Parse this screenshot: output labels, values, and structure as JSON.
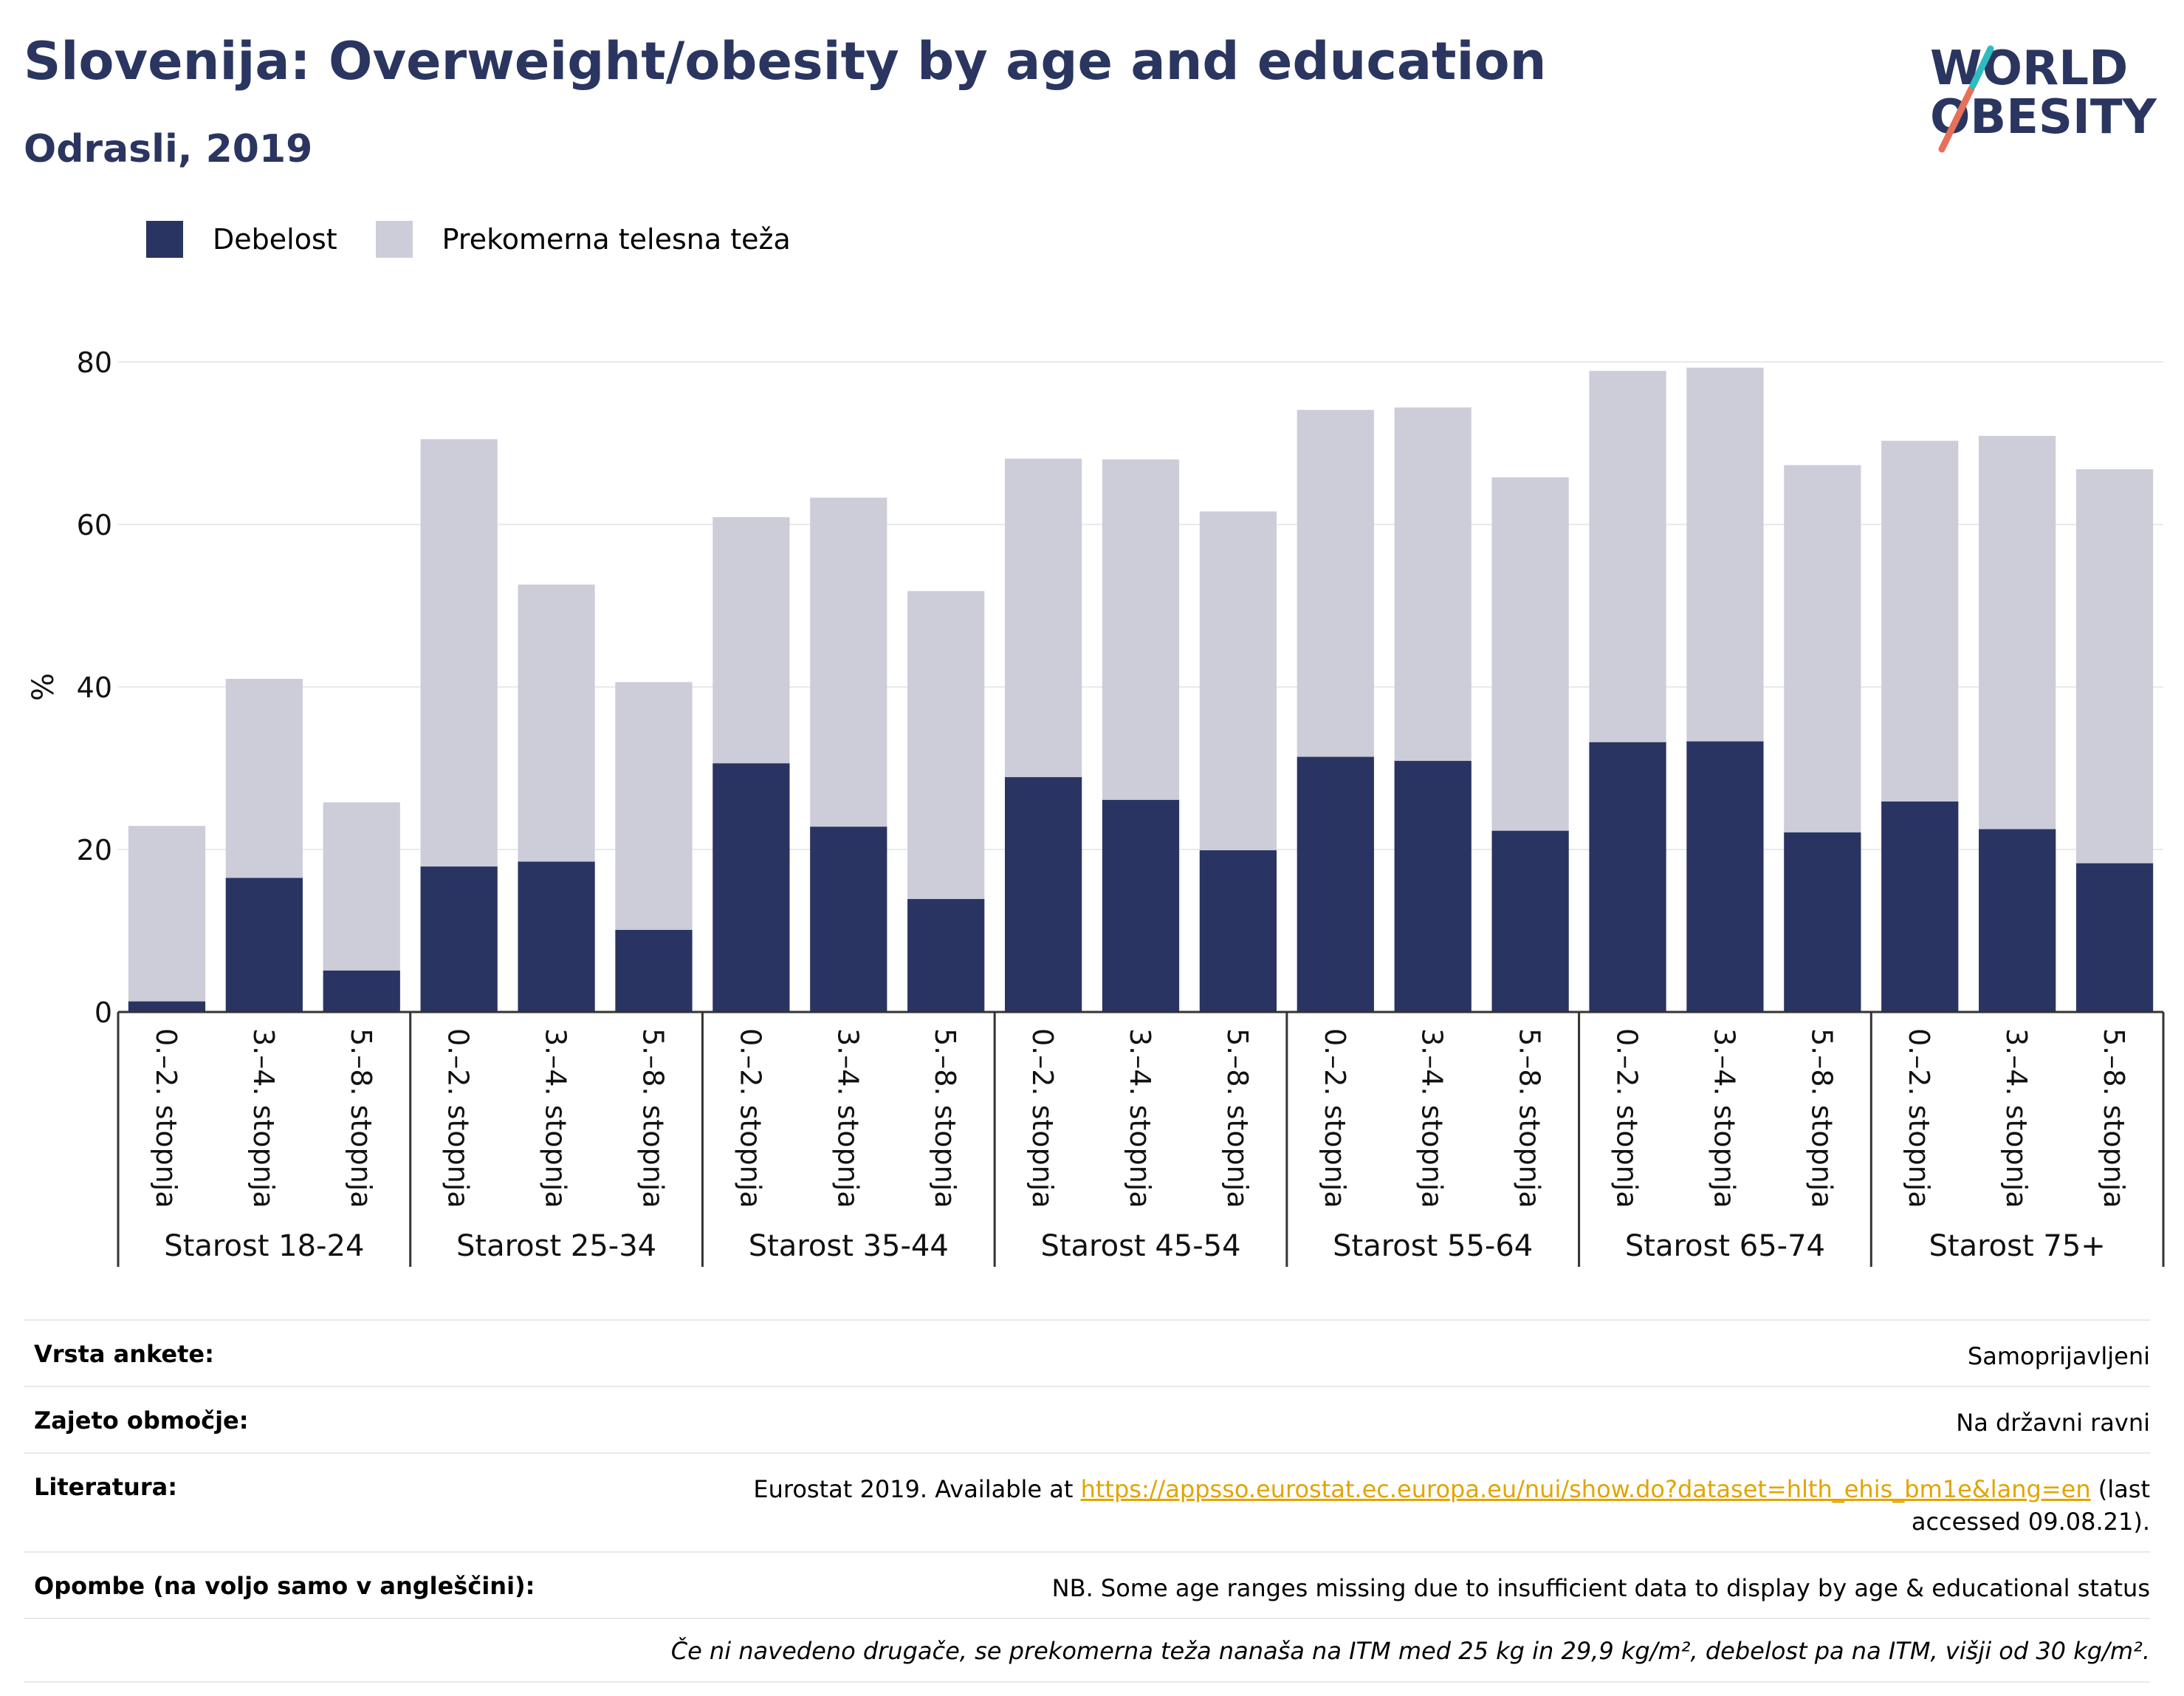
{
  "header": {
    "title": "Slovenija: Overweight/obesity by age and education",
    "subtitle": "Odrasli, 2019",
    "logo_line1": "WORLD",
    "logo_line2": "OBESITY"
  },
  "legend": {
    "obesity_label": "Debelost",
    "overweight_label": "Prekomerna telesna teža"
  },
  "colors": {
    "obesity": "#293462",
    "overweight": "#cccdd9",
    "title": "#2a3560",
    "link": "#e2a400"
  },
  "chart_data": {
    "type": "bar",
    "stacked": true,
    "ylabel": "%",
    "ylim": [
      0,
      85
    ],
    "yticks": [
      0,
      20,
      40,
      60,
      80
    ],
    "grid": true,
    "legend_position": "top-left",
    "groups": [
      {
        "label": "Starost 18-24",
        "categories": [
          "0.–2. stopnja",
          "3.–4. stopnja",
          "5.–8. stopnja"
        ],
        "obesity": [
          1.3,
          16.5,
          5.1
        ],
        "overweight_total": [
          22.9,
          41.0,
          25.8
        ]
      },
      {
        "label": "Starost 25-34",
        "categories": [
          "0.–2. stopnja",
          "3.–4. stopnja",
          "5.–8. stopnja"
        ],
        "obesity": [
          17.9,
          18.5,
          10.1
        ],
        "overweight_total": [
          70.5,
          52.6,
          40.6
        ]
      },
      {
        "label": "Starost 35-44",
        "categories": [
          "0.–2. stopnja",
          "3.–4. stopnja",
          "5.–8. stopnja"
        ],
        "obesity": [
          30.6,
          22.8,
          13.9
        ],
        "overweight_total": [
          60.9,
          63.3,
          51.8
        ]
      },
      {
        "label": "Starost 45-54",
        "categories": [
          "0.–2. stopnja",
          "3.–4. stopnja",
          "5.–8. stopnja"
        ],
        "obesity": [
          28.9,
          26.1,
          19.9
        ],
        "overweight_total": [
          68.1,
          68.0,
          61.6
        ]
      },
      {
        "label": "Starost 55-64",
        "categories": [
          "0.–2. stopnja",
          "3.–4. stopnja",
          "5.–8. stopnja"
        ],
        "obesity": [
          31.4,
          30.9,
          22.3
        ],
        "overweight_total": [
          74.1,
          74.4,
          65.8
        ]
      },
      {
        "label": "Starost 65-74",
        "categories": [
          "0.–2. stopnja",
          "3.–4. stopnja",
          "5.–8. stopnja"
        ],
        "obesity": [
          33.2,
          33.3,
          22.1
        ],
        "overweight_total": [
          78.9,
          79.3,
          67.3
        ]
      },
      {
        "label": "Starost 75+",
        "categories": [
          "0.–2. stopnja",
          "3.–4. stopnja",
          "5.–8. stopnja"
        ],
        "obesity": [
          25.9,
          22.5,
          18.3
        ],
        "overweight_total": [
          70.3,
          70.9,
          66.8
        ]
      }
    ]
  },
  "info": {
    "survey_label": "Vrsta ankete:",
    "survey_value": "Samoprijavljeni",
    "coverage_label": "Zajeto območje:",
    "coverage_value": "Na državni ravni",
    "literature_label": "Literatura:",
    "literature_prefix": "Eurostat 2019. Available at ",
    "literature_link": "https://appsso.eurostat.ec.europa.eu/nui/show.do?dataset=hlth_ehis_bm1e&lang=en",
    "literature_suffix": " (last accessed 09.08.21).",
    "notes_label": "Opombe (na voljo samo v angleščini):",
    "notes_value": "NB. Some age ranges missing due to insufficient data to display by age & educational status",
    "definition_note": "Če ni navedeno drugače, se prekomerna teža nanaša na ITM med 25 kg in 29,9 kg/m², debelost pa na ITM, višji od 30 kg/m²."
  }
}
